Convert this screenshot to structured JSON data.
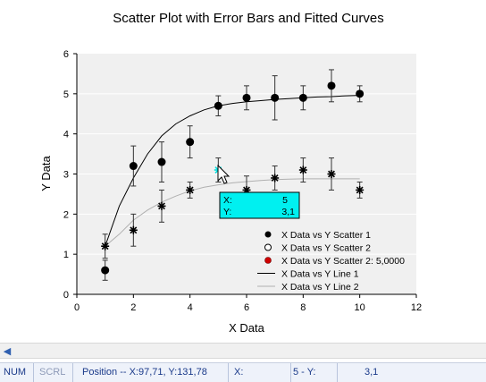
{
  "chart_data": {
    "type": "scatter",
    "title": "Scatter Plot with Error Bars and Fitted Curves",
    "xlabel": "X Data",
    "ylabel": "Y Data",
    "xlim": [
      0,
      12
    ],
    "ylim": [
      0,
      6
    ],
    "x_ticks": [
      "0",
      "2",
      "4",
      "6",
      "8",
      "10",
      "12"
    ],
    "y_ticks": [
      "0",
      "1",
      "2",
      "3",
      "4",
      "5",
      "6"
    ],
    "grid": "horizontal",
    "legend_position": "lower-right",
    "legend": [
      "X Data vs Y Scatter 1",
      "X Data vs Y Scatter 2",
      "X Data vs Y Scatter 2: 5,0000",
      "X Data vs Y Line 1",
      "X Data vs Y Line 2"
    ],
    "series": [
      {
        "name": "X Data vs Y Scatter 1",
        "kind": "scatter",
        "marker": "filled-circle",
        "color": "#000000",
        "x": [
          1,
          2,
          3,
          4,
          5,
          6,
          7,
          8,
          9,
          10
        ],
        "y": [
          0.6,
          3.2,
          3.3,
          3.8,
          4.7,
          4.9,
          4.9,
          4.9,
          5.2,
          5.0
        ],
        "err_low": [
          0.25,
          0.5,
          0.5,
          0.4,
          0.25,
          0.3,
          0.55,
          0.3,
          0.4,
          0.2
        ],
        "err_high": [
          0.25,
          0.5,
          0.5,
          0.4,
          0.25,
          0.3,
          0.55,
          0.3,
          0.4,
          0.2
        ]
      },
      {
        "name": "X Data vs Y Scatter 2",
        "kind": "scatter",
        "marker": "star",
        "color": "#000000",
        "x": [
          1,
          2,
          3,
          4,
          5,
          6,
          7,
          8,
          9,
          10
        ],
        "y": [
          1.2,
          1.6,
          2.2,
          2.6,
          3.1,
          2.6,
          2.9,
          3.1,
          3.0,
          2.6
        ],
        "err_low": [
          0.3,
          0.4,
          0.4,
          0.2,
          0.3,
          0.35,
          0.3,
          0.3,
          0.4,
          0.2
        ],
        "err_high": [
          0.3,
          0.4,
          0.4,
          0.2,
          0.3,
          0.35,
          0.3,
          0.3,
          0.4,
          0.2
        ]
      },
      {
        "name": "X Data vs Y Line 1",
        "kind": "line",
        "color": "#000000",
        "x": [
          1,
          1.5,
          2,
          2.5,
          3,
          3.5,
          4,
          4.5,
          5,
          5.5,
          6,
          6.5,
          7,
          7.5,
          8,
          8.5,
          9,
          9.5,
          10
        ],
        "y": [
          1.2,
          2.2,
          2.9,
          3.5,
          3.95,
          4.25,
          4.45,
          4.6,
          4.7,
          4.76,
          4.8,
          4.83,
          4.86,
          4.88,
          4.9,
          4.92,
          4.93,
          4.95,
          4.96
        ]
      },
      {
        "name": "X Data vs Y Line 2",
        "kind": "line",
        "color": "#b0b0b0",
        "x": [
          1,
          1.5,
          2,
          2.5,
          3,
          3.5,
          4,
          4.5,
          5,
          5.5,
          6,
          6.5,
          7,
          7.5,
          8,
          8.5,
          9,
          9.5,
          10
        ],
        "y": [
          1.2,
          1.5,
          1.85,
          2.1,
          2.3,
          2.45,
          2.58,
          2.67,
          2.73,
          2.78,
          2.81,
          2.84,
          2.86,
          2.87,
          2.88,
          2.88,
          2.88,
          2.88,
          2.88
        ]
      }
    ],
    "highlight_point": {
      "x": 5,
      "y": 3.1,
      "color": "#00e0e0"
    },
    "tooltip": {
      "x_label": "X:",
      "x_value": "5",
      "y_label": "Y:",
      "y_value": "3,1",
      "color": "#00f0f0"
    }
  },
  "statusbar": {
    "num": "NUM",
    "scrl": "SCRL",
    "position": "Position -- X:97,71, Y:131,78",
    "x_label": "X:",
    "value": "5 - Y:",
    "y_value": "3,1"
  },
  "scroll_left_icon": "arrow-left-icon"
}
